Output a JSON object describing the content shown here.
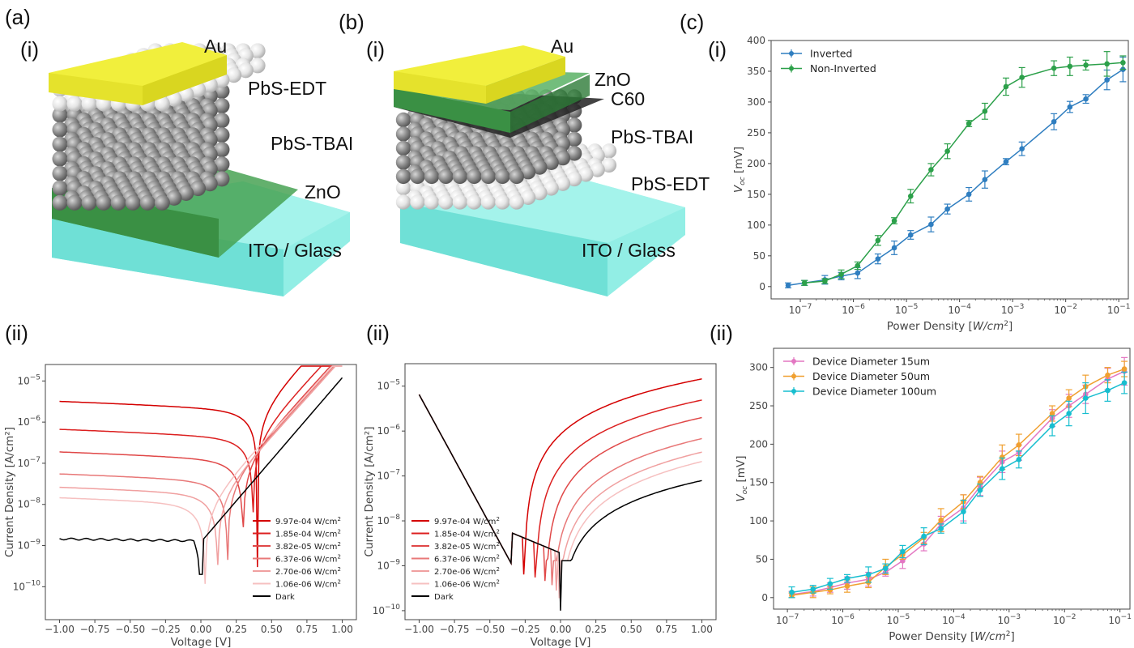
{
  "panels": {
    "a": {
      "label": "(a)",
      "sub_i": "(i)",
      "sub_ii": "(ii)",
      "layers": [
        "Au",
        "PbS-EDT",
        "PbS-TBAI",
        "ZnO",
        "ITO / Glass"
      ]
    },
    "b": {
      "label": "(b)",
      "sub_i": "(i)",
      "sub_ii": "(ii)",
      "layers": [
        "Au",
        "ZnO",
        "C60",
        "PbS-TBAI",
        "PbS-EDT",
        "ITO / Glass"
      ]
    },
    "c": {
      "label": "(c)",
      "sub_i": "(i)",
      "sub_ii": "(ii)"
    }
  },
  "colors": {
    "au": "#f0ee3a",
    "zno": "#3d9a45",
    "ito": "#7fe8de",
    "pbs_tbai": "#8c8c8c",
    "pbs_edt": "#e8e8e8",
    "c60": "#2a2a2a"
  },
  "chart_data": [
    {
      "id": "a-ii",
      "type": "line",
      "title": "",
      "xlabel": "Voltage [V]",
      "ylabel": "Current Density [A/cm²]",
      "yscale": "log",
      "xlim": [
        -1.1,
        1.1
      ],
      "ylim_exp": [
        -10.8,
        -4.6
      ],
      "xticks": [
        "−1.00",
        "−0.75",
        "−0.50",
        "−0.25",
        "0.00",
        "0.25",
        "0.50",
        "0.75",
        "1.00"
      ],
      "xtick_values": [
        -1,
        -0.75,
        -0.5,
        -0.25,
        0,
        0.25,
        0.5,
        0.75,
        1
      ],
      "yticks": [
        "10⁻¹⁰",
        "10⁻⁹",
        "10⁻⁸",
        "10⁻⁷",
        "10⁻⁶",
        "10⁻⁵"
      ],
      "ytick_exps": [
        -10,
        -9,
        -8,
        -7,
        -6,
        -5
      ],
      "legend_position": "lower-right",
      "series": [
        {
          "name": "9.97e-04 W/cm²",
          "color": "#d40000",
          "voc": 0.4,
          "jsc": 2.2e-06,
          "jfwd": 9.5e-06
        },
        {
          "name": "1.85e-04 W/cm²",
          "color": "#dc2020",
          "voc": 0.37,
          "jsc": 4.6e-07,
          "jfwd": 9e-06
        },
        {
          "name": "3.82e-05 W/cm²",
          "color": "#e04848",
          "voc": 0.3,
          "jsc": 1.3e-07,
          "jfwd": 8.8e-06
        },
        {
          "name": "6.37e-06 W/cm²",
          "color": "#e87878",
          "voc": 0.19,
          "jsc": 3.8e-08,
          "jfwd": 8.6e-06
        },
        {
          "name": "2.70e-06 W/cm²",
          "color": "#f0a0a0",
          "voc": 0.12,
          "jsc": 1.8e-08,
          "jfwd": 8.4e-06
        },
        {
          "name": "1.06e-06 W/cm²",
          "color": "#f6c0c0",
          "voc": 0.03,
          "jsc": 1e-08,
          "jfwd": 8.2e-06
        },
        {
          "name": "Dark",
          "color": "#000000",
          "voc": 0.0,
          "jsc": 1.3e-09,
          "jfwd": 1.2e-05
        }
      ]
    },
    {
      "id": "b-ii",
      "type": "line",
      "title": "",
      "xlabel": "Voltage [V]",
      "ylabel": "Current Density [A/cm²]",
      "yscale": "log",
      "xlim": [
        -1.1,
        1.1
      ],
      "ylim_exp": [
        -10.2,
        -4.5
      ],
      "xticks": [
        "−1.00",
        "−0.75",
        "−0.50",
        "−0.25",
        "0.00",
        "0.25",
        "0.50",
        "0.75",
        "1.00"
      ],
      "xtick_values": [
        -1,
        -0.75,
        -0.5,
        -0.25,
        0,
        0.25,
        0.5,
        0.75,
        1
      ],
      "yticks": [
        "10⁻¹⁰",
        "10⁻⁹",
        "10⁻⁸",
        "10⁻⁷",
        "10⁻⁶",
        "10⁻⁵"
      ],
      "ytick_exps": [
        -10,
        -9,
        -8,
        -7,
        -6,
        -5
      ],
      "legend_position": "lower-left",
      "series": [
        {
          "name": "9.97e-04 W/cm²",
          "color": "#d40000",
          "voc": -0.26,
          "jpos": 1.45e-05
        },
        {
          "name": "1.85e-04 W/cm²",
          "color": "#dc2020",
          "voc": -0.18,
          "jpos": 4.9e-06
        },
        {
          "name": "3.82e-05 W/cm²",
          "color": "#e04848",
          "voc": -0.11,
          "jpos": 2e-06
        },
        {
          "name": "6.37e-06 W/cm²",
          "color": "#e87878",
          "voc": -0.06,
          "jpos": 6.8e-07
        },
        {
          "name": "2.70e-06 W/cm²",
          "color": "#f0a0a0",
          "voc": -0.03,
          "jpos": 3.4e-07
        },
        {
          "name": "1.06e-06 W/cm²",
          "color": "#f6c0c0",
          "voc": -0.01,
          "jpos": 2.1e-07
        },
        {
          "name": "Dark",
          "color": "#000000",
          "voc": 0.0,
          "jpos": 7.9e-08
        }
      ]
    },
    {
      "id": "c-i",
      "type": "line",
      "xlabel": "Power Density [W/cm²]",
      "ylabel": "Voc [mV]",
      "xscale": "log",
      "xlim_exp": [
        -7.55,
        -0.82
      ],
      "ylim": [
        -20,
        400
      ],
      "xticks": [
        "10⁻⁷",
        "10⁻⁶",
        "10⁻⁵",
        "10⁻⁴",
        "10⁻³",
        "10⁻²",
        "10⁻¹"
      ],
      "xtick_exps": [
        -7,
        -6,
        -5,
        -4,
        -3,
        -2,
        -1
      ],
      "yticks": [
        "0",
        "50",
        "100",
        "150",
        "200",
        "250",
        "300",
        "350",
        "400"
      ],
      "ytick_values": [
        0,
        50,
        100,
        150,
        200,
        250,
        300,
        350,
        400
      ],
      "legend_position": "top-left",
      "series": [
        {
          "name": "Inverted",
          "color": "#2f7ec0",
          "x": [
            5.9e-08,
            1.2e-07,
            2.9e-07,
            5.9e-07,
            1.2e-06,
            2.9e-06,
            5.9e-06,
            1.2e-05,
            2.9e-05,
            5.9e-05,
            0.00015,
            0.0003,
            0.00075,
            0.0015,
            0.006,
            0.012,
            0.024,
            0.06,
            0.12
          ],
          "y": [
            2,
            6,
            11,
            17,
            22,
            45,
            63,
            84,
            101,
            126,
            150,
            174,
            203,
            224,
            268,
            292,
            305,
            336,
            353
          ],
          "err": [
            4,
            4,
            7,
            6,
            9,
            8,
            11,
            7,
            12,
            8,
            11,
            14,
            5,
            11,
            13,
            9,
            7,
            16,
            20
          ]
        },
        {
          "name": "Non-Inverted",
          "color": "#2ca04a",
          "x": [
            1.2e-07,
            2.9e-07,
            5.9e-07,
            1.2e-06,
            2.9e-06,
            5.9e-06,
            1.2e-05,
            2.9e-05,
            5.9e-05,
            0.00015,
            0.0003,
            0.00075,
            0.0015,
            0.006,
            0.012,
            0.024,
            0.06,
            0.12
          ],
          "y": [
            6,
            9,
            20,
            34,
            75,
            107,
            147,
            190,
            220,
            265,
            285,
            325,
            340,
            355,
            358,
            360,
            362,
            364
          ],
          "err": [
            4,
            4,
            7,
            6,
            8,
            5,
            11,
            10,
            12,
            5,
            13,
            14,
            16,
            12,
            15,
            8,
            20,
            11
          ]
        }
      ]
    },
    {
      "id": "c-ii",
      "type": "line",
      "xlabel": "Power Density [W/cm²]",
      "ylabel": "Voc [mV]",
      "xscale": "log",
      "xlim_exp": [
        -7.25,
        -0.82
      ],
      "ylim": [
        -15,
        325
      ],
      "xticks": [
        "10⁻⁷",
        "10⁻⁶",
        "10⁻⁵",
        "10⁻⁴",
        "10⁻³",
        "10⁻²",
        "10⁻¹"
      ],
      "xtick_exps": [
        -7,
        -6,
        -5,
        -4,
        -3,
        -2,
        -1
      ],
      "yticks": [
        "0",
        "50",
        "100",
        "150",
        "200",
        "250",
        "300"
      ],
      "ytick_values": [
        0,
        50,
        100,
        150,
        200,
        250,
        300
      ],
      "legend_position": "top-left",
      "series": [
        {
          "name": "Device Diameter 15um",
          "color": "#e377c2",
          "x": [
            1.2e-07,
            2.9e-07,
            5.9e-07,
            1.2e-06,
            2.9e-06,
            5.9e-06,
            1.2e-05,
            2.9e-05,
            5.9e-05,
            0.00015,
            0.0003,
            0.00075,
            0.0015,
            0.006,
            0.012,
            0.024,
            0.06,
            0.12
          ],
          "y": [
            4,
            8,
            13,
            19,
            24,
            33,
            48,
            70,
            96,
            117,
            145,
            177,
            189,
            234,
            250,
            265,
            285,
            295
          ],
          "err": [
            4,
            6,
            6,
            8,
            9,
            5,
            10,
            9,
            10,
            17,
            12,
            14,
            10,
            11,
            15,
            12,
            14,
            18
          ]
        },
        {
          "name": "Device Diameter 50um",
          "color": "#f0a030",
          "x": [
            1.2e-07,
            2.9e-07,
            5.9e-07,
            1.2e-06,
            2.9e-06,
            5.9e-06,
            1.2e-05,
            2.9e-05,
            5.9e-05,
            0.00015,
            0.0003,
            0.00075,
            0.0015,
            0.006,
            0.012,
            0.024,
            0.06,
            0.12
          ],
          "y": [
            3,
            7,
            10,
            15,
            20,
            40,
            56,
            78,
            101,
            125,
            150,
            183,
            199,
            240,
            260,
            275,
            290,
            298
          ],
          "err": [
            3,
            7,
            5,
            8,
            7,
            10,
            6,
            7,
            15,
            9,
            8,
            16,
            14,
            10,
            11,
            15,
            10,
            10
          ]
        },
        {
          "name": "Device Diameter 100um",
          "color": "#17becf",
          "x": [
            1.2e-07,
            2.9e-07,
            5.9e-07,
            1.2e-06,
            2.9e-06,
            5.9e-06,
            1.2e-05,
            2.9e-05,
            5.9e-05,
            0.00015,
            0.0003,
            0.00075,
            0.0015,
            0.006,
            0.012,
            0.024,
            0.06,
            0.12
          ],
          "y": [
            7,
            11,
            18,
            25,
            30,
            38,
            60,
            80,
            90,
            112,
            140,
            168,
            180,
            224,
            240,
            260,
            270,
            280
          ],
          "err": [
            7,
            5,
            7,
            5,
            10,
            6,
            8,
            11,
            6,
            15,
            8,
            14,
            11,
            13,
            16,
            20,
            14,
            14
          ]
        }
      ]
    }
  ]
}
